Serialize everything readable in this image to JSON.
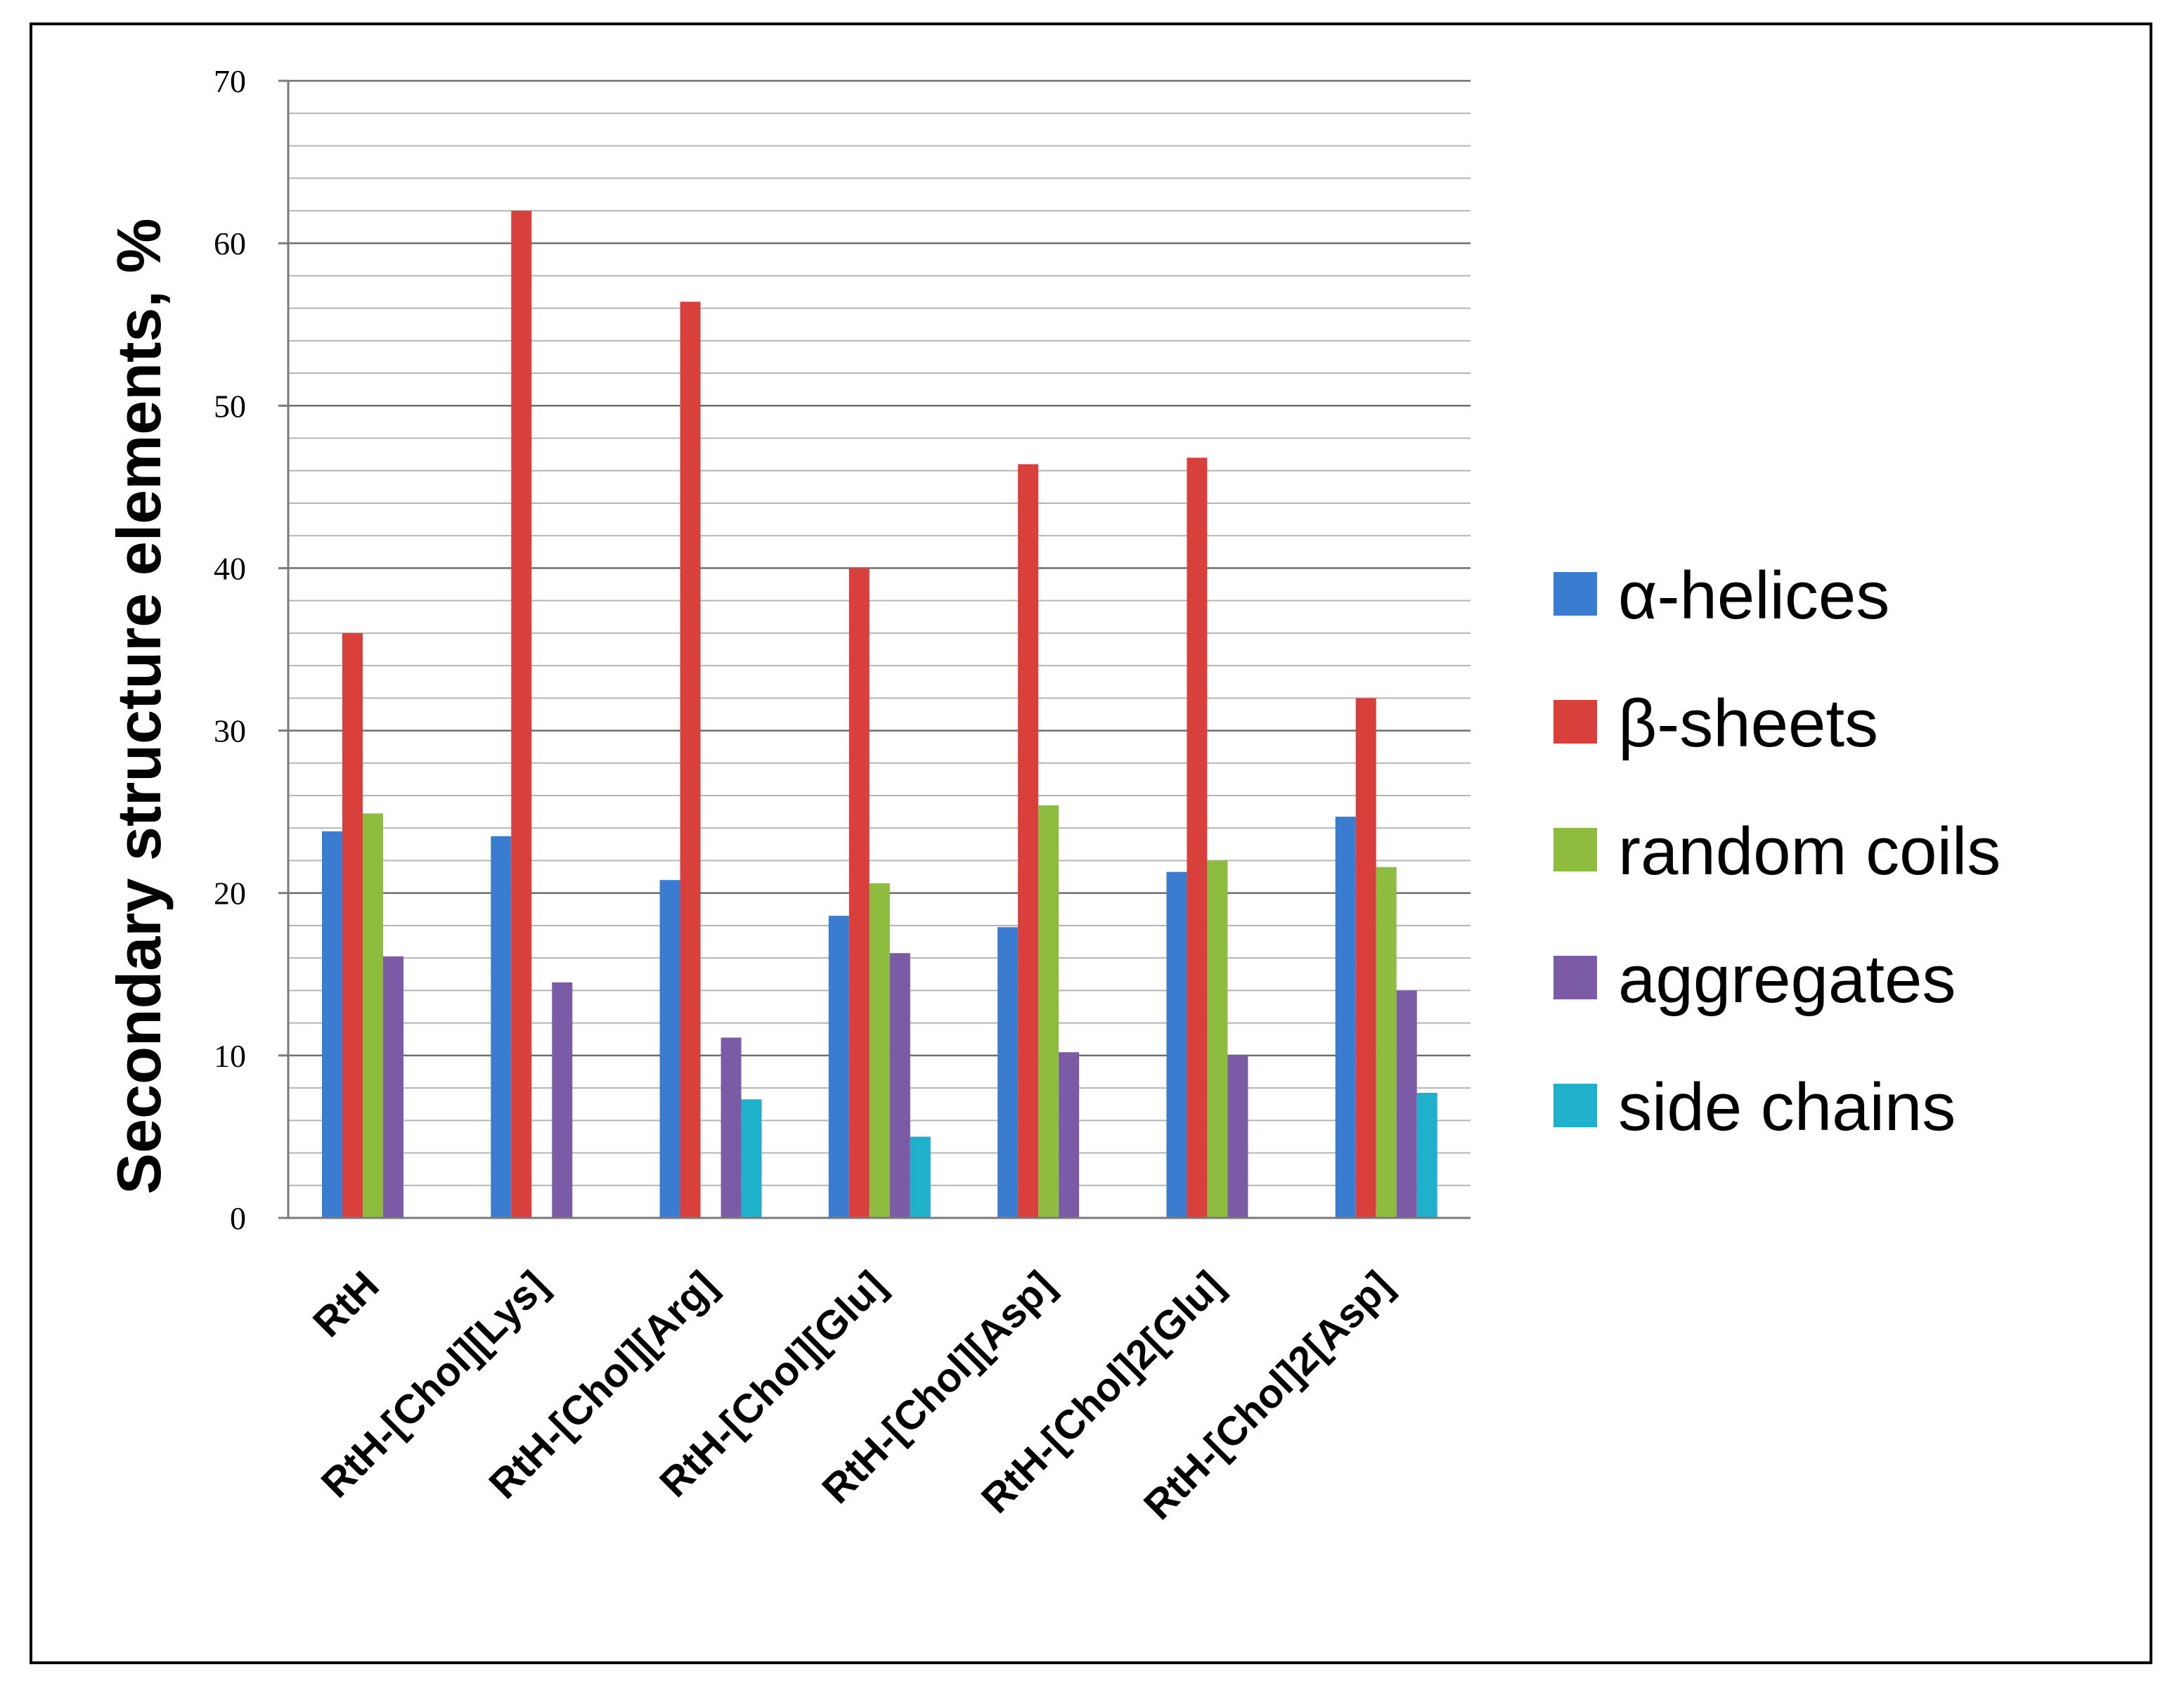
{
  "chart_data": {
    "type": "bar",
    "title": "",
    "xlabel": "",
    "ylabel": "Secondary structure elements, %",
    "ylim": [
      0,
      70
    ],
    "yticks": [
      0,
      10,
      20,
      30,
      40,
      50,
      60,
      70
    ],
    "minor_grid_step": 2,
    "grid": true,
    "legend_position": "right",
    "categories": [
      "RtH",
      "RtH-[Chol][Lys]",
      "RtH-[Chol][Arg]",
      "RtH-[Chol][Glu]",
      "RtH-[Chol][Asp]",
      "RtH-[Chol]2[Glu]",
      "RtH-[Chol]2[Asp]"
    ],
    "series": [
      {
        "name": "α-helices",
        "color": "#3a7ccf",
        "values": [
          23.8,
          23.5,
          20.8,
          18.6,
          17.9,
          21.3,
          24.7
        ]
      },
      {
        "name": "β-sheets",
        "color": "#d9403c",
        "values": [
          36.0,
          62.0,
          56.4,
          40.0,
          46.4,
          46.8,
          32.0
        ]
      },
      {
        "name": "random coils",
        "color": "#8ebc3e",
        "values": [
          24.9,
          0,
          0,
          20.6,
          25.4,
          22.0,
          21.6
        ]
      },
      {
        "name": "aggregates",
        "color": "#7b5aa6",
        "values": [
          16.1,
          14.5,
          11.1,
          16.3,
          10.2,
          10.0,
          14.0
        ]
      },
      {
        "name": "side chains",
        "color": "#1fb0cc",
        "values": [
          0,
          0,
          7.3,
          5.0,
          0,
          0,
          7.7
        ]
      }
    ]
  }
}
